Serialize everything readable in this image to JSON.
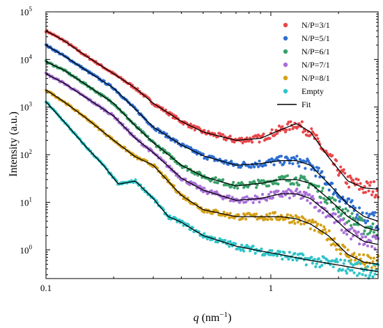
{
  "chart_data": {
    "type": "scatter",
    "title": "",
    "xlabel_italic": "q",
    "xlabel_unit": " (nm",
    "xlabel_exp": "−1",
    "xlabel_close": ")",
    "ylabel": "Intensity (a.u.)",
    "xscale": "log",
    "yscale": "log",
    "xlim": [
      0.1,
      3
    ],
    "ylim": [
      0.25,
      100000
    ],
    "x_ticks": [
      {
        "value": 0.1,
        "label": "0.1"
      },
      {
        "value": 1,
        "label": "1"
      }
    ],
    "y_ticks": [
      {
        "value": 1,
        "base": "10",
        "exp": "0"
      },
      {
        "value": 10,
        "base": "10",
        "exp": "1"
      },
      {
        "value": 100,
        "base": "10",
        "exp": "2"
      },
      {
        "value": 1000,
        "base": "10",
        "exp": "3"
      },
      {
        "value": 10000,
        "base": "10",
        "exp": "4"
      },
      {
        "value": 100000,
        "base": "10",
        "exp": "5"
      }
    ],
    "legend_position": "top-right",
    "fit_label": "Fit",
    "fit_color": "#000000",
    "series": [
      {
        "name": "N/P=3/1",
        "color": "#e8474a",
        "x": [
          0.1,
          0.12,
          0.15,
          0.2,
          0.25,
          0.3,
          0.4,
          0.5,
          0.7,
          0.9,
          1.1,
          1.3,
          1.5,
          1.8,
          2.2,
          2.6,
          3.0
        ],
        "y": [
          40000,
          25000,
          12000,
          5000,
          2500,
          1200,
          500,
          300,
          200,
          220,
          330,
          450,
          300,
          90,
          28,
          20,
          19
        ]
      },
      {
        "name": "N/P=5/1",
        "color": "#2f6fd0",
        "x": [
          0.1,
          0.12,
          0.15,
          0.2,
          0.25,
          0.3,
          0.4,
          0.5,
          0.7,
          0.9,
          1.1,
          1.3,
          1.5,
          1.8,
          2.2,
          2.6,
          3.0
        ],
        "y": [
          20000,
          12000,
          6000,
          2500,
          900,
          380,
          160,
          95,
          60,
          65,
          75,
          75,
          60,
          25,
          9,
          5,
          4
        ]
      },
      {
        "name": "N/P=6/1",
        "color": "#3aa06a",
        "x": [
          0.1,
          0.12,
          0.15,
          0.2,
          0.25,
          0.3,
          0.4,
          0.5,
          0.7,
          0.9,
          1.1,
          1.3,
          1.5,
          1.8,
          2.2,
          2.6,
          3.0
        ],
        "y": [
          9000,
          6000,
          3000,
          1200,
          400,
          180,
          60,
          35,
          22,
          25,
          30,
          30,
          25,
          12,
          5,
          3,
          2.5
        ]
      },
      {
        "name": "N/P=7/1",
        "color": "#a86fd8",
        "x": [
          0.1,
          0.12,
          0.15,
          0.2,
          0.25,
          0.3,
          0.4,
          0.5,
          0.7,
          0.9,
          1.1,
          1.3,
          1.5,
          1.8,
          2.2,
          2.6,
          3.0
        ],
        "y": [
          5000,
          3200,
          1600,
          650,
          220,
          110,
          32,
          18,
          11,
          12,
          15,
          15,
          12,
          6,
          2.5,
          1.5,
          1.3
        ]
      },
      {
        "name": "N/P=8/1",
        "color": "#d4a017",
        "x": [
          0.1,
          0.12,
          0.15,
          0.2,
          0.25,
          0.3,
          0.4,
          0.5,
          0.7,
          0.9,
          1.1,
          1.3,
          1.5,
          1.8,
          2.2,
          2.6,
          3.0
        ],
        "y": [
          2300,
          1300,
          600,
          200,
          90,
          60,
          14,
          7,
          5,
          5,
          5,
          4.5,
          3.5,
          2,
          0.8,
          0.55,
          0.5
        ]
      },
      {
        "name": "Empty",
        "color": "#2ec4c8",
        "x": [
          0.1,
          0.12,
          0.15,
          0.18,
          0.21,
          0.25,
          0.3,
          0.35,
          0.4,
          0.5,
          0.7,
          0.9,
          1.1,
          1.5,
          2.0,
          2.5,
          3.0
        ],
        "y": [
          1300,
          500,
          150,
          60,
          24,
          28,
          12,
          5,
          3.8,
          2.0,
          1.2,
          0.95,
          0.8,
          0.6,
          0.48,
          0.4,
          0.35
        ]
      }
    ]
  }
}
